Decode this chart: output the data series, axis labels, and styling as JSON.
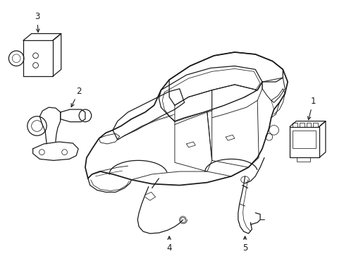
{
  "bg_color": "#ffffff",
  "line_color": "#1a1a1a",
  "lw": 0.9,
  "fig_width": 4.89,
  "fig_height": 3.6,
  "dpi": 100,
  "label_fontsize": 8.5,
  "label_fontweight": "normal"
}
